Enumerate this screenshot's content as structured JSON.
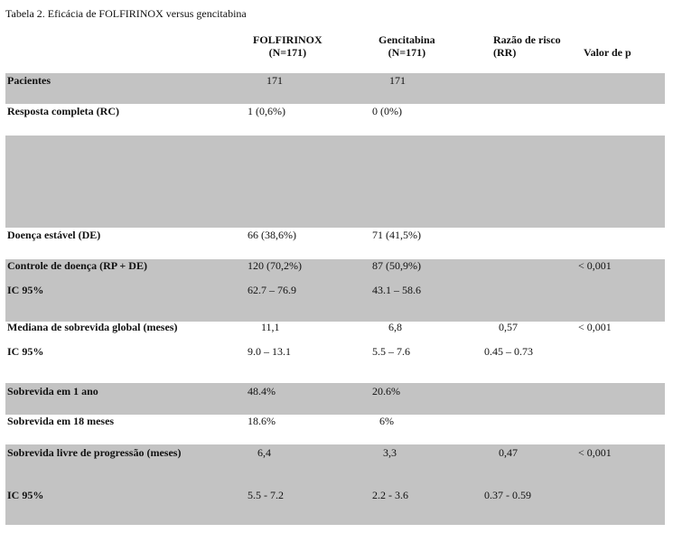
{
  "caption": "Tabela 2. Eficácia de FOLFIRINOX versus gencitabina",
  "headers": {
    "folfirinox": [
      "FOLFIRINOX",
      "(N=171)"
    ],
    "gencitabina": [
      "Gencitabina",
      "(N=171)"
    ],
    "rr": [
      "Razão de risco",
      "(RR)"
    ],
    "p": [
      "Valor de p"
    ]
  },
  "rows": [
    {
      "label": "Pacientes",
      "folfirinox": "171",
      "gencitabina": "171",
      "rr": "",
      "p": ""
    },
    {
      "label": "Resposta completa (RC)",
      "folfirinox": "1 (0,6%)",
      "gencitabina": "0 (0%)",
      "rr": "",
      "p": ""
    },
    {
      "label": "",
      "folfirinox": "",
      "gencitabina": "",
      "rr": "",
      "p": ""
    },
    {
      "label": "Doença estável (DE)",
      "folfirinox": "66 (38,6%)",
      "gencitabina": "71 (41,5%)",
      "rr": "",
      "p": ""
    },
    {
      "label": "Controle de doença (RP + DE)",
      "folfirinox": "120 (70,2%)",
      "gencitabina": "87 (50,9%)",
      "rr": "",
      "p": "< 0,001"
    },
    {
      "label": "IC 95%",
      "folfirinox": "62.7 – 76.9",
      "gencitabina": "43.1 – 58.6",
      "rr": "",
      "p": ""
    },
    {
      "label": "Mediana de sobrevida global (meses)",
      "folfirinox": "11,1",
      "gencitabina": "6,8",
      "rr": "0,57",
      "p": "< 0,001"
    },
    {
      "label": "IC 95%",
      "folfirinox": "9.0 – 13.1",
      "gencitabina": "5.5 – 7.6",
      "rr": "0.45 – 0.73",
      "p": ""
    },
    {
      "label": "Sobrevida em 1 ano",
      "folfirinox": "48.4%",
      "gencitabina": "20.6%",
      "rr": "",
      "p": ""
    },
    {
      "label": "Sobrevida em 18 meses",
      "folfirinox": "18.6%",
      "gencitabina": "6%",
      "rr": "",
      "p": ""
    },
    {
      "label": "Sobrevida livre de progressão (meses)",
      "folfirinox": "6,4",
      "gencitabina": "3,3",
      "rr": "0,47",
      "p": "< 0,001"
    },
    {
      "label": "IC 95%",
      "folfirinox": "5.5 - 7.2",
      "gencitabina": "2.2 - 3.6",
      "rr": "0.37 - 0.59",
      "p": ""
    }
  ]
}
